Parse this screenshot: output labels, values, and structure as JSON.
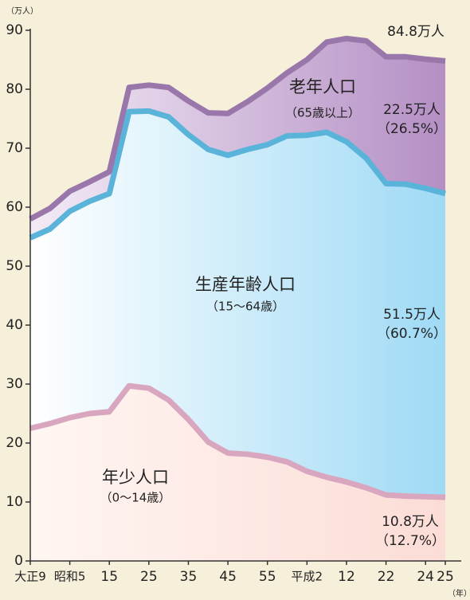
{
  "chart_data": {
    "type": "stacked_area",
    "y_unit": "（万人）",
    "x_unit": "（年）",
    "categories": [
      "大正9",
      null,
      "昭和5",
      null,
      "15",
      null,
      "25",
      null,
      "35",
      null,
      "45",
      null,
      "55",
      null,
      "平成2",
      null,
      "12",
      null,
      "22",
      null,
      "24",
      "25"
    ],
    "series": [
      {
        "name": "年少人口",
        "sub": "（0〜14歳）",
        "color": "#d9a6bf",
        "fill": "#fde6e2",
        "values": [
          22.5,
          23.3,
          24.3,
          25.0,
          25.3,
          29.7,
          29.3,
          27.3,
          24.0,
          20.2,
          18.3,
          18.1,
          17.6,
          16.8,
          15.2,
          14.2,
          13.4,
          12.4,
          11.2,
          11.0,
          10.9,
          10.8
        ]
      },
      {
        "name": "生産年齢人口",
        "sub": "（15〜64歳）",
        "color": "#5ab3d9",
        "fill": "#c8e8f7",
        "values": [
          32.3,
          33.0,
          35.0,
          36.0,
          37.0,
          46.5,
          47.0,
          48.0,
          48.3,
          49.6,
          50.5,
          51.7,
          53.0,
          55.3,
          57.0,
          58.5,
          57.7,
          55.9,
          52.8,
          52.9,
          52.3,
          51.5
        ]
      },
      {
        "name": "老年人口",
        "sub": "（65歳以上）",
        "color": "#9a77ab",
        "fill": "#d9c3e2",
        "values": [
          3.2,
          3.5,
          3.4,
          3.3,
          3.7,
          4.1,
          4.4,
          5.0,
          5.7,
          6.2,
          7.1,
          8.1,
          9.6,
          10.7,
          12.8,
          15.3,
          17.5,
          19.9,
          21.5,
          21.6,
          21.9,
          22.5
        ]
      }
    ],
    "end_labels": {
      "total": "84.8万人",
      "old": "22.5万人",
      "old_pct": "（26.5%）",
      "work": "51.5万人",
      "work_pct": "（60.7%）",
      "young": "10.8万人",
      "young_pct": "（12.7%）"
    },
    "ylim": [
      0,
      90
    ],
    "yticks": [
      0,
      10,
      20,
      30,
      40,
      50,
      60,
      70,
      80,
      90
    ]
  }
}
